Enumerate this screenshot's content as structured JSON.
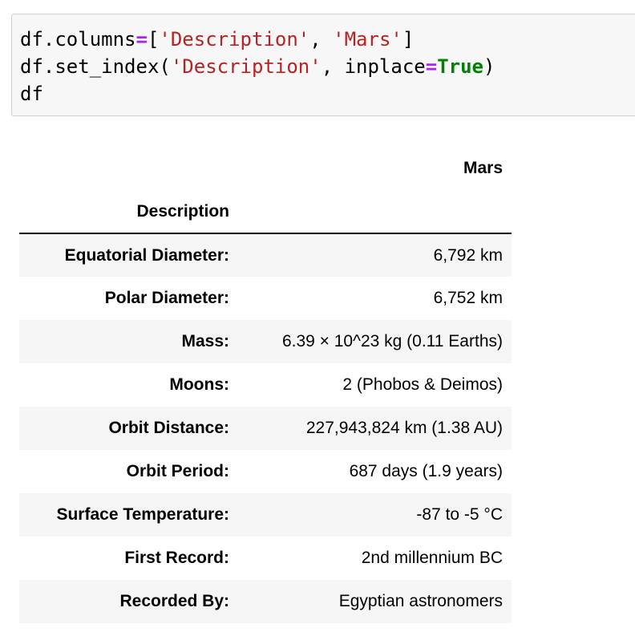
{
  "code_cell": {
    "line1": {
      "a": "df.columns",
      "op": "=",
      "b": "[",
      "s1": "'Description'",
      "c": ", ",
      "s2": "'Mars'",
      "d": "]"
    },
    "line2": {
      "a": "df.set_index(",
      "s1": "'Description'",
      "b": ", inplace",
      "op": "=",
      "kw": "True",
      "c": ")"
    },
    "line3": "df"
  },
  "table": {
    "column_header": "Mars",
    "index_name": "Description",
    "rows": [
      {
        "label": "Equatorial Diameter:",
        "value": "6,792 km"
      },
      {
        "label": "Polar Diameter:",
        "value": "6,752 km"
      },
      {
        "label": "Mass:",
        "value": "6.39 × 10^23 kg (0.11 Earths)"
      },
      {
        "label": "Moons:",
        "value": "2 (Phobos & Deimos)"
      },
      {
        "label": "Orbit Distance:",
        "value": "227,943,824 km (1.38 AU)"
      },
      {
        "label": "Orbit Period:",
        "value": "687 days (1.9 years)"
      },
      {
        "label": "Surface Temperature:",
        "value": "-87 to -5 °C"
      },
      {
        "label": "First Record:",
        "value": "2nd millennium BC"
      },
      {
        "label": "Recorded By:",
        "value": "Egyptian astronomers"
      }
    ]
  },
  "colors": {
    "string": "#ba2121",
    "operator": "#aa22ff",
    "keyword": "#008000",
    "cell_background": "#f7f7f7",
    "row_stripe": "#f5f5f5"
  }
}
